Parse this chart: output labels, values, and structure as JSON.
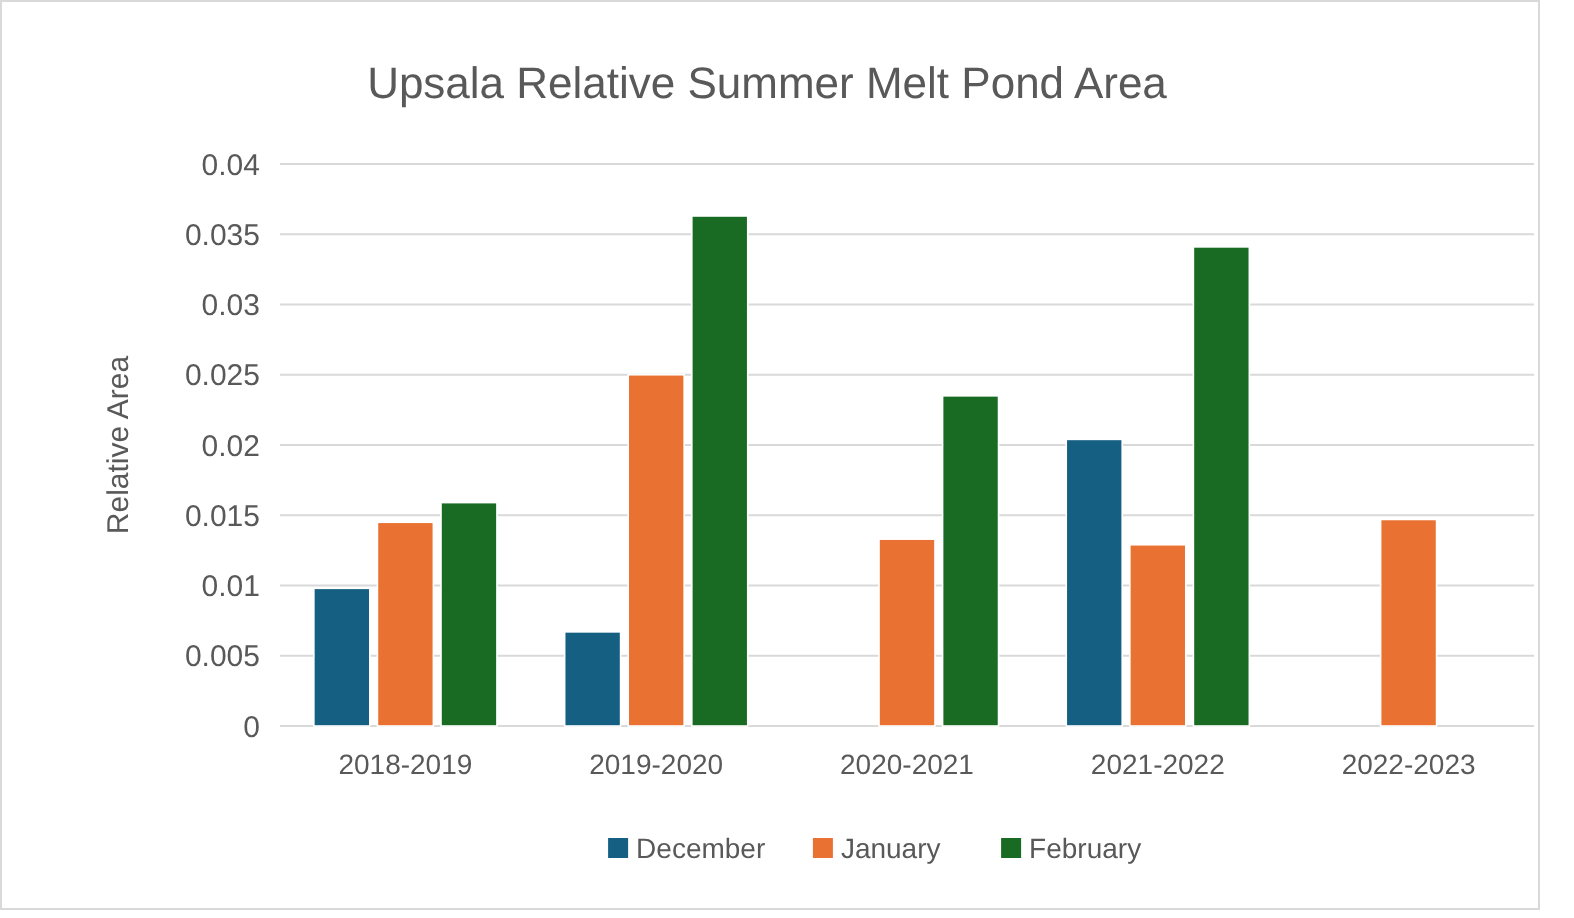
{
  "chart_data": {
    "type": "bar",
    "title": "Upsala Relative Summer Melt Pond Area",
    "ylabel": "Relative Area",
    "categories": [
      "2018-2019",
      "2019-2020",
      "2020-2021",
      "2021-2022",
      "2022-2023"
    ],
    "series": [
      {
        "name": "December",
        "color": "#156082",
        "values": [
          0.0098,
          0.0067,
          null,
          0.0204,
          null
        ]
      },
      {
        "name": "January",
        "color": "#e97132",
        "values": [
          0.0145,
          0.025,
          0.0133,
          0.0129,
          0.0147
        ]
      },
      {
        "name": "February",
        "color": "#196b24",
        "values": [
          0.0159,
          0.0363,
          0.0235,
          0.0341,
          null
        ]
      }
    ],
    "ylim": [
      0,
      0.04
    ],
    "yticks": [
      0,
      0.005,
      0.01,
      0.015,
      0.02,
      0.025,
      0.03,
      0.035,
      0.04
    ],
    "grid": "y",
    "legend": "bottom"
  }
}
